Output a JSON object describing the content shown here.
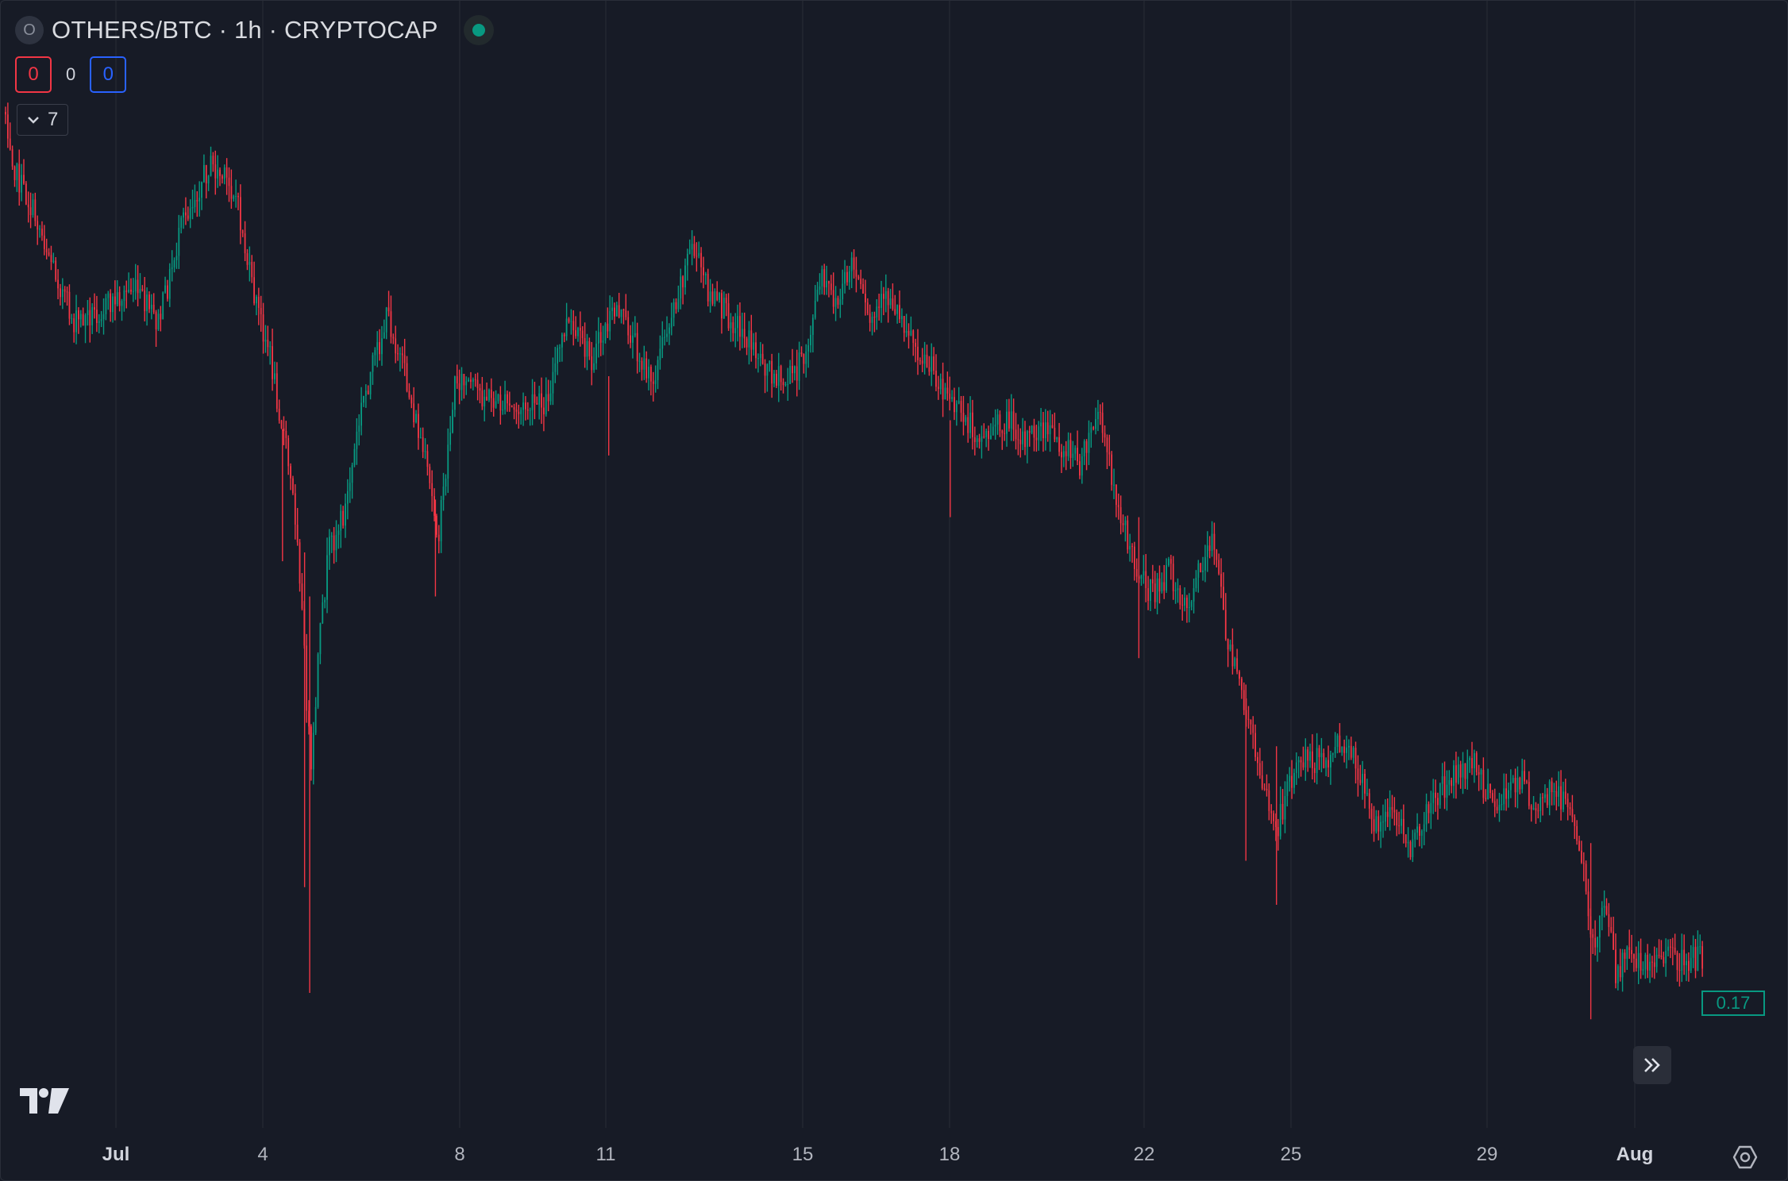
{
  "legend": {
    "symbol_badge": "O",
    "title": "OTHERS/BTC · 1h · CRYPTOCAP",
    "status_color": "#089981"
  },
  "counters": {
    "sell": "0",
    "spread": "0",
    "buy": "0"
  },
  "indicators_toggle": {
    "count": "7",
    "icon": "chevron-down-icon"
  },
  "price_label": "0.17",
  "icons": {
    "logo": "tradingview-logo-icon",
    "scroll": "double-chevron-right-icon",
    "settings": "gear-icon"
  },
  "colors": {
    "up": "#089981",
    "down": "#f23645",
    "background": "#171b26",
    "grid": "#262a35"
  },
  "chart_data": {
    "type": "candlestick",
    "x_ticks": [
      "Jul",
      "4",
      "8",
      "11",
      "15",
      "18",
      "22",
      "25",
      "29",
      "Aug"
    ],
    "x_ticks_bold": [
      "Jul",
      "Aug"
    ],
    "grid": true,
    "last_price": 0.17,
    "path_anchors": [
      [
        0,
        0.0
      ],
      [
        0.006,
        0.07
      ],
      [
        0.02,
        0.13
      ],
      [
        0.04,
        0.24
      ],
      [
        0.06,
        0.22
      ],
      [
        0.075,
        0.2
      ],
      [
        0.09,
        0.24
      ],
      [
        0.105,
        0.12
      ],
      [
        0.12,
        0.06
      ],
      [
        0.135,
        0.09
      ],
      [
        0.145,
        0.2
      ],
      [
        0.155,
        0.27
      ],
      [
        0.165,
        0.38
      ],
      [
        0.172,
        0.48
      ],
      [
        0.177,
        0.66
      ],
      [
        0.18,
        0.76
      ],
      [
        0.184,
        0.62
      ],
      [
        0.19,
        0.5
      ],
      [
        0.2,
        0.45
      ],
      [
        0.21,
        0.33
      ],
      [
        0.225,
        0.23
      ],
      [
        0.235,
        0.3
      ],
      [
        0.245,
        0.38
      ],
      [
        0.255,
        0.48
      ],
      [
        0.265,
        0.3
      ],
      [
        0.28,
        0.32
      ],
      [
        0.3,
        0.34
      ],
      [
        0.318,
        0.33
      ],
      [
        0.33,
        0.24
      ],
      [
        0.345,
        0.28
      ],
      [
        0.36,
        0.22
      ],
      [
        0.372,
        0.27
      ],
      [
        0.38,
        0.31
      ],
      [
        0.39,
        0.24
      ],
      [
        0.404,
        0.15
      ],
      [
        0.415,
        0.21
      ],
      [
        0.43,
        0.24
      ],
      [
        0.445,
        0.28
      ],
      [
        0.458,
        0.31
      ],
      [
        0.47,
        0.28
      ],
      [
        0.48,
        0.19
      ],
      [
        0.49,
        0.22
      ],
      [
        0.498,
        0.17
      ],
      [
        0.508,
        0.24
      ],
      [
        0.52,
        0.21
      ],
      [
        0.53,
        0.24
      ],
      [
        0.54,
        0.28
      ],
      [
        0.548,
        0.3
      ],
      [
        0.56,
        0.34
      ],
      [
        0.575,
        0.37
      ],
      [
        0.59,
        0.35
      ],
      [
        0.6,
        0.37
      ],
      [
        0.61,
        0.36
      ],
      [
        0.622,
        0.38
      ],
      [
        0.633,
        0.4
      ],
      [
        0.643,
        0.34
      ],
      [
        0.652,
        0.42
      ],
      [
        0.662,
        0.5
      ],
      [
        0.675,
        0.55
      ],
      [
        0.685,
        0.52
      ],
      [
        0.695,
        0.56
      ],
      [
        0.71,
        0.48
      ],
      [
        0.72,
        0.61
      ],
      [
        0.73,
        0.68
      ],
      [
        0.74,
        0.76
      ],
      [
        0.748,
        0.82
      ],
      [
        0.755,
        0.76
      ],
      [
        0.765,
        0.73
      ],
      [
        0.775,
        0.74
      ],
      [
        0.785,
        0.72
      ],
      [
        0.795,
        0.74
      ],
      [
        0.805,
        0.81
      ],
      [
        0.815,
        0.79
      ],
      [
        0.828,
        0.84
      ],
      [
        0.835,
        0.8
      ],
      [
        0.845,
        0.77
      ],
      [
        0.855,
        0.75
      ],
      [
        0.865,
        0.74
      ],
      [
        0.875,
        0.79
      ],
      [
        0.885,
        0.77
      ],
      [
        0.893,
        0.75
      ],
      [
        0.9,
        0.8
      ],
      [
        0.91,
        0.77
      ],
      [
        0.918,
        0.78
      ],
      [
        0.928,
        0.85
      ],
      [
        0.935,
        0.95
      ],
      [
        0.941,
        0.9
      ],
      [
        0.948,
        0.98
      ],
      [
        0.952,
        0.96
      ]
    ]
  }
}
